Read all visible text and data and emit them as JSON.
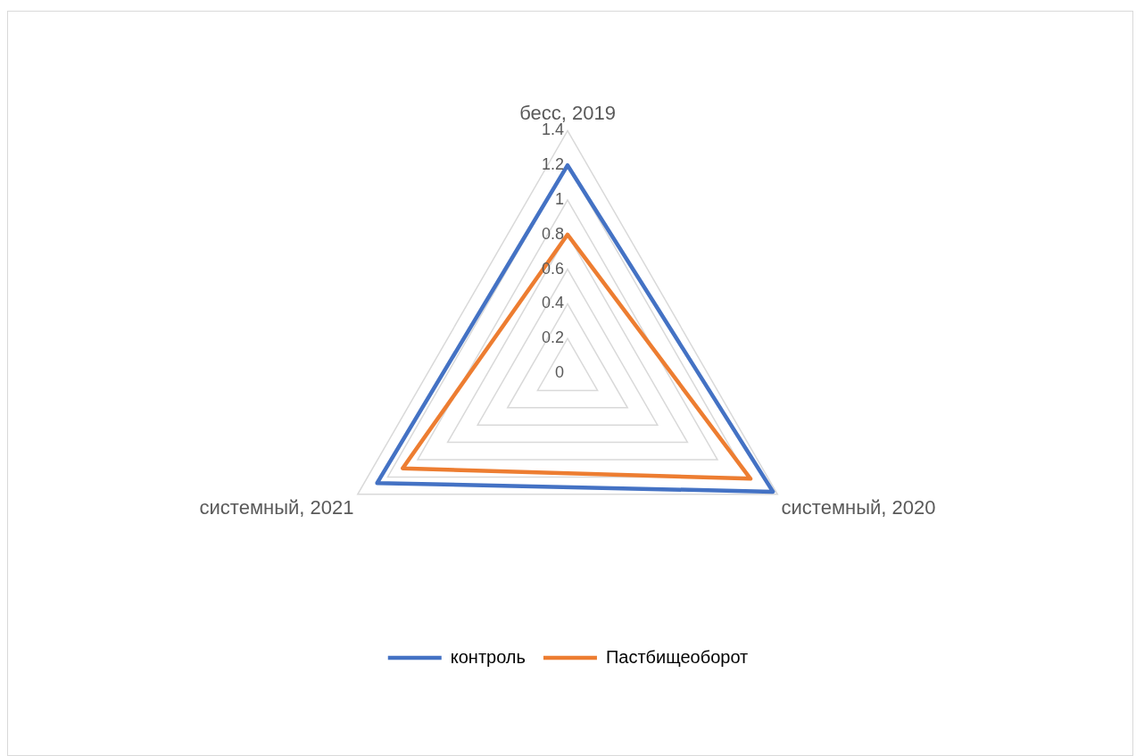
{
  "chart_data": {
    "type": "radar",
    "categories": [
      "бесс, 2019",
      "системный, 2020",
      "системный, 2021"
    ],
    "series": [
      {
        "name": "контроль",
        "color": "#4472c4",
        "values": [
          1.2,
          1.37,
          1.27
        ]
      },
      {
        "name": "Пастбищеоборот",
        "color": "#ed7d31",
        "values": [
          0.8,
          1.22,
          1.1
        ]
      }
    ],
    "ylim": [
      0,
      1.4
    ],
    "yticks": [
      0,
      0.2,
      0.4,
      0.6,
      0.8,
      1,
      1.2,
      1.4
    ],
    "grid": true,
    "legend": "bottom"
  }
}
